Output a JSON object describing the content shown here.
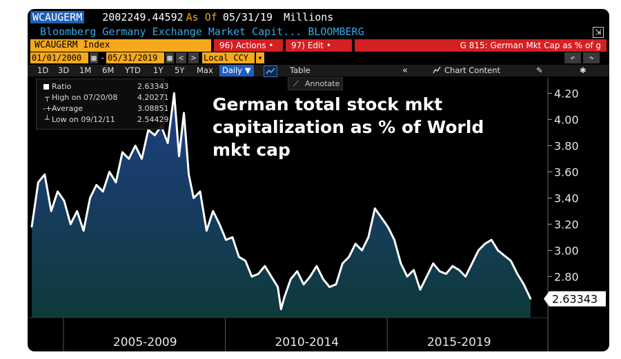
{
  "header": {
    "ticker": "WCAUGERM",
    "value": "2002249.44592",
    "as_of_label": "As Of",
    "as_of_date": "05/31/19",
    "units": "Millions",
    "description": "Bloomberg Germany Exchange Market Capit... BLOOMBERG",
    "expand_icon": "export-icon"
  },
  "command_bar": {
    "index_label": "WCAUGERM Index",
    "actions_label": "96) Actions •",
    "edit_label": "97) Edit •",
    "function_label": "G 815: German Mkt Cap as % of g"
  },
  "date_bar": {
    "start_date": "01/01/2000",
    "end_date": "05/31/2019",
    "separator": "-",
    "currency": "Local CCY",
    "nav_prev": "<",
    "nav_next": ">",
    "undo": "↶",
    "redo": "↷"
  },
  "toolbar": {
    "periods": [
      "1D",
      "3D",
      "1M",
      "6M",
      "YTD",
      "1Y",
      "5Y",
      "Max"
    ],
    "frequency": "Daily ▼",
    "table_label": "Table",
    "collapse_label": "«",
    "chart_content_label": "Chart Content",
    "annotate_label": "Annotate"
  },
  "legend": {
    "rows": [
      {
        "label": "Ratio",
        "value": "2.63343"
      },
      {
        "label": "High on 07/20/08",
        "value": "4.20271"
      },
      {
        "label": "Average",
        "value": "3.08851"
      },
      {
        "label": "Low on 09/12/11",
        "value": "2.54429"
      }
    ]
  },
  "headline": [
    "German total stock mkt",
    "capitalization as % of World",
    "mkt cap"
  ],
  "colors": {
    "background": "#000000",
    "line": "#ffffff",
    "area_top": "#1e3f86",
    "area_bottom": "#0e3a3a",
    "accent_orange": "#f6a91b",
    "accent_red": "#d41f23",
    "link_blue": "#39a7e6"
  },
  "chart_data": {
    "type": "area",
    "title": "",
    "xlabel": "",
    "ylabel": "",
    "ylim": [
      2.47,
      4.26
    ],
    "y_ticks": [
      "4.20",
      "4.00",
      "3.80",
      "3.60",
      "3.40",
      "3.20",
      "3.00",
      "2.80"
    ],
    "x_group_labels": [
      "2005-2009",
      "2010-2014",
      "2015-2019"
    ],
    "last_value_label": "2.63343",
    "grid": false,
    "series": [
      {
        "x": [
          2004.0,
          2004.2,
          2004.4,
          2004.6,
          2004.8,
          2005.0,
          2005.2,
          2005.4,
          2005.6,
          2005.8,
          2006.0,
          2006.2,
          2006.4,
          2006.6,
          2006.8,
          2007.0,
          2007.2,
          2007.4,
          2007.6,
          2007.8,
          2008.0,
          2008.2,
          2008.4,
          2008.55,
          2008.7,
          2008.85,
          2009.0,
          2009.2,
          2009.4,
          2009.6,
          2009.8,
          2010.0,
          2010.2,
          2010.4,
          2010.6,
          2010.8,
          2011.0,
          2011.2,
          2011.4,
          2011.6,
          2011.7,
          2011.8,
          2012.0,
          2012.2,
          2012.4,
          2012.6,
          2012.8,
          2013.0,
          2013.2,
          2013.4,
          2013.6,
          2013.8,
          2014.0,
          2014.2,
          2014.4,
          2014.6,
          2014.8,
          2015.0,
          2015.2,
          2015.4,
          2015.6,
          2015.8,
          2016.0,
          2016.2,
          2016.4,
          2016.6,
          2016.8,
          2017.0,
          2017.2,
          2017.4,
          2017.6,
          2017.8,
          2018.0,
          2018.2,
          2018.4,
          2018.6,
          2018.8,
          2019.0,
          2019.2,
          2019.41
        ],
        "y": [
          3.18,
          3.52,
          3.58,
          3.3,
          3.45,
          3.38,
          3.2,
          3.3,
          3.15,
          3.4,
          3.5,
          3.45,
          3.6,
          3.52,
          3.75,
          3.7,
          3.8,
          3.7,
          3.92,
          3.88,
          3.95,
          3.82,
          4.2,
          3.72,
          4.05,
          3.58,
          3.4,
          3.45,
          3.15,
          3.3,
          3.2,
          3.08,
          3.1,
          2.95,
          2.92,
          2.8,
          2.82,
          2.88,
          2.8,
          2.72,
          2.55,
          2.64,
          2.78,
          2.84,
          2.74,
          2.8,
          2.88,
          2.78,
          2.72,
          2.74,
          2.9,
          2.95,
          3.05,
          3.0,
          3.1,
          3.32,
          3.25,
          3.18,
          3.08,
          2.9,
          2.8,
          2.85,
          2.7,
          2.8,
          2.9,
          2.84,
          2.82,
          2.88,
          2.85,
          2.8,
          2.9,
          3.0,
          3.05,
          3.08,
          3.0,
          2.96,
          2.92,
          2.82,
          2.74,
          2.63
        ]
      }
    ]
  }
}
